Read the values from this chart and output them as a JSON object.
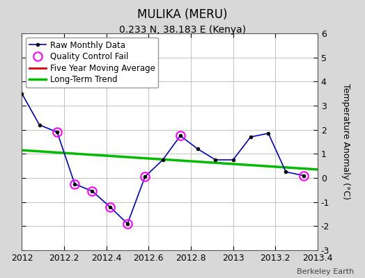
{
  "title": "MULIKA (MERU)",
  "subtitle": "0.233 N, 38.183 E (Kenya)",
  "ylabel": "Temperature Anomaly (°C)",
  "credit": "Berkeley Earth",
  "xlim": [
    2012,
    2013.4
  ],
  "ylim": [
    -3,
    6
  ],
  "xticks": [
    2012,
    2012.2,
    2012.4,
    2012.6,
    2012.8,
    2013,
    2013.2,
    2013.4
  ],
  "yticks": [
    -3,
    -2,
    -1,
    0,
    1,
    2,
    3,
    4,
    5,
    6
  ],
  "raw_x": [
    2012.0,
    2012.083,
    2012.167,
    2012.25,
    2012.333,
    2012.417,
    2012.5,
    2012.583,
    2012.667,
    2012.75,
    2012.833,
    2012.917,
    2013.0,
    2013.083,
    2013.167,
    2013.25,
    2013.333
  ],
  "raw_y": [
    3.5,
    2.2,
    1.9,
    -0.25,
    -0.55,
    -1.2,
    -1.9,
    0.05,
    0.75,
    1.75,
    1.2,
    0.75,
    0.75,
    1.7,
    1.85,
    0.25,
    0.1
  ],
  "qc_fail_x": [
    2012.167,
    2012.25,
    2012.333,
    2012.417,
    2012.5,
    2012.583,
    2012.75,
    2013.333
  ],
  "qc_fail_y": [
    1.9,
    -0.25,
    -0.55,
    -1.2,
    -1.9,
    0.05,
    1.75,
    0.1
  ],
  "trend_x": [
    2012.0,
    2013.4
  ],
  "trend_y": [
    1.15,
    0.35
  ],
  "background_color": "#d8d8d8",
  "plot_bg_color": "#ffffff",
  "raw_line_color": "#0000cc",
  "raw_marker_color": "#000000",
  "qc_marker_color": "#ff00ff",
  "trend_color": "#00bb00",
  "ma_color": "#dd0000",
  "grid_color": "#c0c0c0",
  "spine_color": "#555555",
  "title_fontsize": 12,
  "subtitle_fontsize": 10,
  "tick_fontsize": 9,
  "ylabel_fontsize": 9,
  "legend_fontsize": 8.5,
  "credit_fontsize": 8
}
